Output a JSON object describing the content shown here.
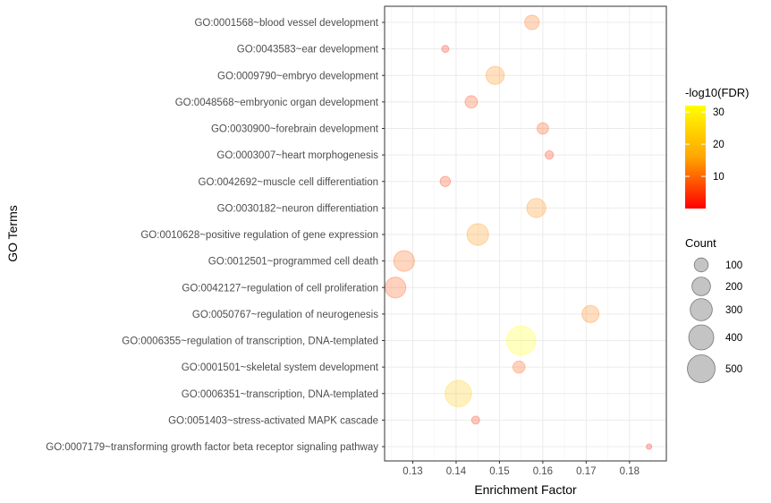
{
  "chart_data": {
    "type": "scatter",
    "title": "",
    "xlabel": "Enrichment Factor",
    "ylabel": "GO Terms",
    "xlim": [
      0.1235,
      0.1885
    ],
    "xticks": [
      0.13,
      0.14,
      0.15,
      0.16,
      0.17,
      0.18
    ],
    "xtick_labels": [
      "0.13",
      "0.14",
      "0.15",
      "0.16",
      "0.17",
      "0.18"
    ],
    "grid": true,
    "points": [
      {
        "term": "GO:0001568~blood vessel development",
        "x": 0.1575,
        "count": 110,
        "fdr": 10
      },
      {
        "term": "GO:0043583~ear development",
        "x": 0.1375,
        "count": 15,
        "fdr": 3
      },
      {
        "term": "GO:0009790~embryo development",
        "x": 0.149,
        "count": 190,
        "fdr": 13
      },
      {
        "term": "GO:0048568~embryonic organ development",
        "x": 0.1435,
        "count": 75,
        "fdr": 6
      },
      {
        "term": "GO:0030900~forebrain development",
        "x": 0.16,
        "count": 60,
        "fdr": 7
      },
      {
        "term": "GO:0003007~heart morphogenesis",
        "x": 0.1615,
        "count": 25,
        "fdr": 4
      },
      {
        "term": "GO:0042692~muscle cell differentiation",
        "x": 0.1375,
        "count": 45,
        "fdr": 5
      },
      {
        "term": "GO:0030182~neuron differentiation",
        "x": 0.1585,
        "count": 215,
        "fdr": 13
      },
      {
        "term": "GO:0010628~positive regulation of gene expression",
        "x": 0.145,
        "count": 285,
        "fdr": 14
      },
      {
        "term": "GO:0012501~programmed cell death",
        "x": 0.128,
        "count": 260,
        "fdr": 9
      },
      {
        "term": "GO:0042127~regulation of cell proliferation",
        "x": 0.126,
        "count": 260,
        "fdr": 7
      },
      {
        "term": "GO:0050767~regulation of neurogenesis",
        "x": 0.171,
        "count": 165,
        "fdr": 12
      },
      {
        "term": "GO:0006355~regulation of transcription, DNA-templated",
        "x": 0.155,
        "count": 560,
        "fdr": 32
      },
      {
        "term": "GO:0001501~skeletal system development",
        "x": 0.1545,
        "count": 70,
        "fdr": 8
      },
      {
        "term": "GO:0006351~transcription, DNA-templated",
        "x": 0.1405,
        "count": 450,
        "fdr": 22
      },
      {
        "term": "GO:0051403~stress-activated MAPK cascade",
        "x": 0.1445,
        "count": 22,
        "fdr": 4
      },
      {
        "term": "GO:0007179~transforming growth factor beta receptor signaling pathway",
        "x": 0.1845,
        "count": 5,
        "fdr": 2
      }
    ],
    "color_legend": {
      "title": "-log10(FDR)",
      "ticks": [
        10,
        20,
        30
      ],
      "tick_labels": [
        "10",
        "20",
        "30"
      ],
      "range": [
        0,
        32
      ],
      "low_color": "#ff0000",
      "high_color": "#ffff00"
    },
    "size_legend": {
      "title": "Count",
      "values": [
        100,
        200,
        300,
        400,
        500
      ],
      "labels": [
        "100",
        "200",
        "300",
        "400",
        "500"
      ]
    },
    "legend_position": "right",
    "point_alpha": 0.25,
    "point_stroke_alpha": 0.3
  }
}
